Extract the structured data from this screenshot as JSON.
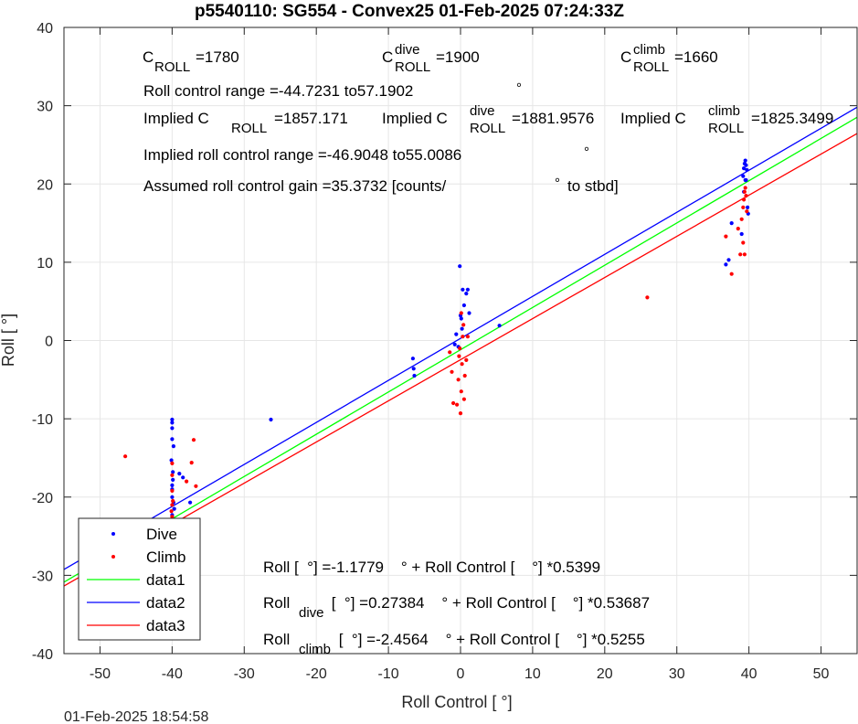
{
  "chart_data": {
    "type": "scatter",
    "title": "p5540110: SG554 - Convex25 01-Feb-2025 07:24:33Z",
    "xlabel": "Roll Control [  °]",
    "ylabel": "Roll [  °]",
    "xlim": [
      -55,
      55
    ],
    "ylim": [
      -40,
      40
    ],
    "xticks": [
      -50,
      -40,
      -30,
      -20,
      -10,
      0,
      10,
      20,
      30,
      40,
      50
    ],
    "yticks": [
      -40,
      -30,
      -20,
      -10,
      0,
      10,
      20,
      30,
      40
    ],
    "grid": true,
    "footer": "01-Feb-2025 18:54:58",
    "annotations": {
      "c_roll": "C",
      "c_roll_sub": "ROLL",
      "c_roll_val": "=1780",
      "c_dive": "C",
      "c_dive_sup": "dive",
      "c_dive_sub": "ROLL",
      "c_dive_val": "=1900",
      "c_climb": "C",
      "c_climb_sup": "climb",
      "c_climb_sub": "ROLL",
      "c_climb_val": "=1660",
      "range": "Roll control range =-44.7231 to57.1902",
      "range_deg": "°",
      "implied_c": "Implied C",
      "implied_c_sub": "ROLL",
      "implied_c_val": "=1857.171",
      "implied_dive": "Implied C",
      "implied_dive_sup": "dive",
      "implied_dive_sub": "ROLL",
      "implied_dive_val": "=1881.9576",
      "implied_climb": "Implied C",
      "implied_climb_sup": "climb",
      "implied_climb_sub": "ROLL",
      "implied_climb_val": "=1825.3499",
      "implied_range": "Implied roll control range =-46.9048 to55.0086",
      "implied_range_deg": "°",
      "gain": "Assumed roll control gain =35.3732 [counts/",
      "gain_deg": "°",
      "gain_tail": "to stbd]",
      "eq1": "Roll [  °] =-1.1779    ° + Roll Control [    °] *0.5399",
      "eq2_a": "Roll",
      "eq2_sub": "dive",
      "eq2_b": " [  °] =0.27384    ° + Roll Control [    °] *0.53687",
      "eq3_a": "Roll",
      "eq3_sub": "climb",
      "eq3_b": " [  °] =-2.4564    ° + Roll Control [    °] *0.5255"
    },
    "legend": {
      "placement": "bottom-left",
      "entries": [
        "Dive",
        "Climb",
        "data1",
        "data2",
        "data3"
      ]
    },
    "series": [
      {
        "name": "Dive",
        "kind": "scatter",
        "color": "#0000ff",
        "x": [
          -48.2,
          -40,
          -40,
          -40,
          -40,
          -39.8,
          -40.1,
          -39.9,
          -40,
          -40,
          -39.8,
          -39.7,
          -40,
          -40.2,
          -40,
          -39.9,
          -39,
          -38.5,
          -37.5,
          -40,
          -39.6,
          -26.3,
          -6.6,
          -6.5,
          -6.4,
          -0.8,
          -0.6,
          -0.3,
          -0.1,
          0,
          0.1,
          0.2,
          0.3,
          0.5,
          0.8,
          1.0,
          1.2,
          5.4,
          36.8,
          37.2,
          37.6,
          39.0,
          39.2,
          39.3,
          39.4,
          39.5,
          39.5,
          39.6,
          39.7,
          39.8,
          39.9,
          39.3,
          39.6
        ],
        "y": [
          -24.5,
          -10.1,
          -10.5,
          -11.2,
          -12.6,
          -13.5,
          -15.3,
          -17.8,
          -19.0,
          -20.0,
          -20.7,
          -21.5,
          -22.3,
          -23.0,
          -24.1,
          -16.8,
          -17.0,
          -17.5,
          -20.7,
          -18.5,
          -26.0,
          -10.1,
          -2.3,
          -3.6,
          -4.5,
          -0.5,
          0.8,
          -0.8,
          9.5,
          3.2,
          2.8,
          1.5,
          6.5,
          4.5,
          6.0,
          6.5,
          3.5,
          1.9,
          9.7,
          10.3,
          15.0,
          13.6,
          21.0,
          22.0,
          22.6,
          23.0,
          20.5,
          22.4,
          21.8,
          17.0,
          16.2,
          19.0,
          20.5
        ]
      },
      {
        "name": "Climb",
        "kind": "scatter",
        "color": "#ff0000",
        "x": [
          -48.1,
          -46.5,
          -40,
          -40,
          -40,
          -39.9,
          -40.1,
          -40,
          -40,
          -39.8,
          -40.2,
          -40,
          -38.0,
          -37.0,
          -37.3,
          -36.7,
          -40,
          -1.5,
          -1.2,
          -1.0,
          -0.5,
          -0.3,
          -0.2,
          0,
          0.1,
          0.2,
          0.3,
          0.4,
          0.6,
          0.8,
          1.0,
          0.5,
          0.1,
          -0.1,
          25.9,
          36.8,
          37.6,
          38.5,
          38.8,
          39.0,
          39.2,
          39.3,
          39.4,
          39.5,
          39.6,
          39.7,
          39.2,
          39.4
        ],
        "y": [
          -27.5,
          -14.8,
          -15.7,
          -17.2,
          -19.2,
          -20.5,
          -21.8,
          -22.5,
          -23.5,
          -24.0,
          -25.0,
          -26.6,
          -18.0,
          -12.7,
          -15.6,
          -18.6,
          -21.0,
          -1.5,
          -4.0,
          -8.0,
          -8.2,
          -5.0,
          -2.0,
          -9.3,
          -6.5,
          -3.0,
          0.5,
          2.0,
          -4.5,
          -2.5,
          0.5,
          -7.5,
          3.5,
          -1.0,
          5.5,
          13.3,
          8.5,
          14.3,
          11.0,
          15.5,
          17.0,
          18.0,
          19.0,
          19.5,
          18.5,
          16.5,
          12.5,
          11.0
        ]
      },
      {
        "name": "data1",
        "kind": "line",
        "color": "#00ff00",
        "x": [
          -55,
          55
        ],
        "y": [
          -30.873,
          28.517
        ]
      },
      {
        "name": "data2",
        "kind": "line",
        "color": "#0000ff",
        "x": [
          -55,
          55
        ],
        "y": [
          -29.254,
          29.802
        ]
      },
      {
        "name": "data3",
        "kind": "line",
        "color": "#ff0000",
        "x": [
          -55,
          55
        ],
        "y": [
          -31.359,
          26.446
        ]
      }
    ]
  }
}
